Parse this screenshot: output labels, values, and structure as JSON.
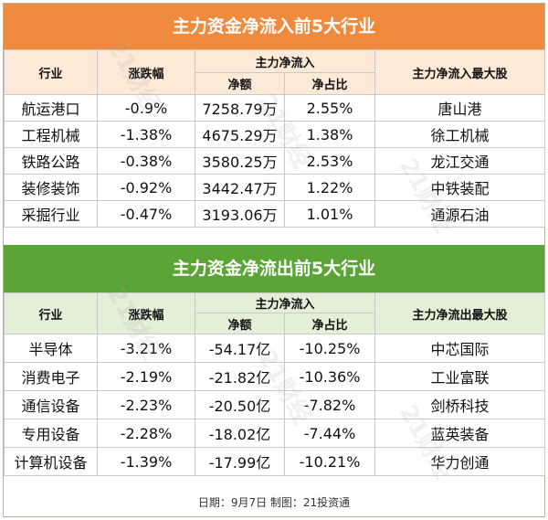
{
  "inflow": {
    "title": "主力资金净流入前5大行业",
    "headers": {
      "industry": "行业",
      "change": "涨跌幅",
      "group": "主力净流入",
      "net": "净额",
      "ratio": "净占比",
      "top_stock": "主力净流入最大股"
    },
    "rows": [
      {
        "industry": "航运港口",
        "change": "-0.9%",
        "net": "7258.79万",
        "ratio": "2.55%",
        "stock": "唐山港"
      },
      {
        "industry": "工程机械",
        "change": "-1.38%",
        "net": "4675.29万",
        "ratio": "1.38%",
        "stock": "徐工机械"
      },
      {
        "industry": "铁路公路",
        "change": "-0.38%",
        "net": "3580.25万",
        "ratio": "2.53%",
        "stock": "龙江交通"
      },
      {
        "industry": "装修装饰",
        "change": "-0.92%",
        "net": "3442.47万",
        "ratio": "1.22%",
        "stock": "中铁装配"
      },
      {
        "industry": "采掘行业",
        "change": "-0.47%",
        "net": "3193.06万",
        "ratio": "1.01%",
        "stock": "通源石油"
      }
    ]
  },
  "outflow": {
    "title": "主力资金净流出前5大行业",
    "headers": {
      "industry": "行业",
      "change": "涨跌幅",
      "group": "主力净流入",
      "net": "净额",
      "ratio": "净占比",
      "top_stock": "主力净流出最大股"
    },
    "rows": [
      {
        "industry": "半导体",
        "change": "-3.21%",
        "net": "-54.17亿",
        "ratio": "-10.25%",
        "stock": "中芯国际"
      },
      {
        "industry": "消费电子",
        "change": "-2.19%",
        "net": "-21.82亿",
        "ratio": "-10.36%",
        "stock": "工业富联"
      },
      {
        "industry": "通信设备",
        "change": "-2.23%",
        "net": "-20.50亿",
        "ratio": "-7.82%",
        "stock": "剑桥科技"
      },
      {
        "industry": "专用设备",
        "change": "-2.28%",
        "net": "-18.02亿",
        "ratio": "-7.44%",
        "stock": "蓝英装备"
      },
      {
        "industry": "计算机设备",
        "change": "-1.39%",
        "net": "-17.99亿",
        "ratio": "-10.21%",
        "stock": "华力创通"
      }
    ]
  },
  "footer": "日期：9月7日 制图：21投资通",
  "watermark": "21财经",
  "colors": {
    "inflow_band": "#f08a3c",
    "inflow_header": "#fde9d7",
    "outflow_band": "#5aa536",
    "outflow_header": "#e4efd8"
  }
}
